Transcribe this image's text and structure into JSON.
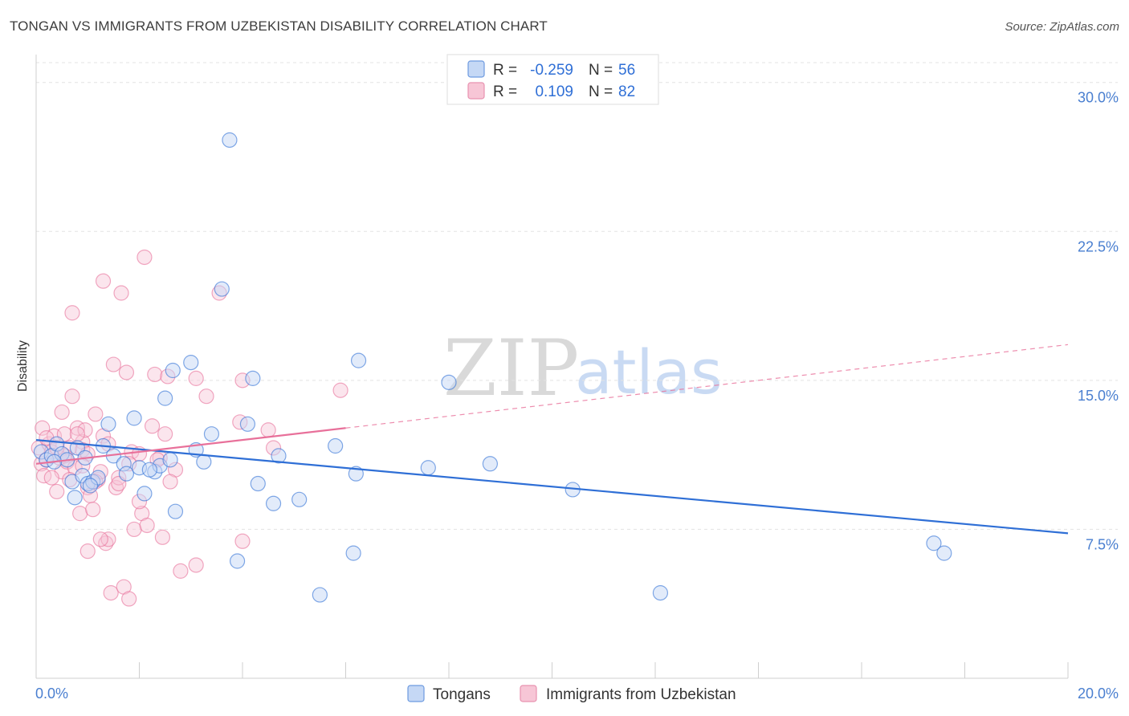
{
  "title": "TONGAN VS IMMIGRANTS FROM UZBEKISTAN DISABILITY CORRELATION CHART",
  "source": "Source: ZipAtlas.com",
  "watermark": {
    "zip": "ZIP",
    "atlas": "atlas"
  },
  "colors": {
    "tongans": "#2f6fd6",
    "tongans_fill": "#c5d8f5",
    "uzbek": "#e8709a",
    "uzbek_fill": "#f7c6d6",
    "grid": "#e3e3e3",
    "tick_label": "#4a7fd0"
  },
  "chart_data": {
    "type": "scatter",
    "title": "TONGAN VS IMMIGRANTS FROM UZBEKISTAN DISABILITY CORRELATION CHART",
    "xlabel": "",
    "ylabel": "Disability",
    "xlim": [
      0,
      20
    ],
    "ylim": [
      0,
      31
    ],
    "x_tick_labels": [
      "0.0%",
      "20.0%"
    ],
    "y_ticks": [
      7.5,
      15.0,
      22.5,
      30.0
    ],
    "y_tick_labels": [
      "7.5%",
      "15.0%",
      "22.5%",
      "30.0%"
    ],
    "grid": true,
    "legend": {
      "placement": "top-center",
      "entries": [
        {
          "series": "Tongans",
          "r_label": "R =",
          "r_value": "-0.259",
          "n_label": "N =",
          "n_value": "56"
        },
        {
          "series": "Immigrants from Uzbekistan",
          "r_label": "R =",
          "r_value": "0.109",
          "n_label": "N =",
          "n_value": "82"
        }
      ]
    },
    "series": [
      {
        "name": "Tongans",
        "trend": {
          "x": [
            0,
            20
          ],
          "y": [
            12.0,
            7.3
          ],
          "style": "solid"
        },
        "points": [
          [
            0.1,
            11.4
          ],
          [
            0.2,
            11.0
          ],
          [
            0.3,
            11.2
          ],
          [
            0.4,
            11.8
          ],
          [
            0.5,
            11.3
          ],
          [
            0.6,
            11.0
          ],
          [
            0.7,
            9.9
          ],
          [
            0.75,
            9.1
          ],
          [
            0.8,
            11.6
          ],
          [
            0.9,
            10.2
          ],
          [
            1.0,
            9.8
          ],
          [
            1.1,
            9.9
          ],
          [
            1.3,
            11.7
          ],
          [
            1.4,
            12.8
          ],
          [
            1.5,
            11.2
          ],
          [
            1.7,
            10.8
          ],
          [
            1.75,
            10.3
          ],
          [
            1.9,
            13.1
          ],
          [
            2.0,
            10.6
          ],
          [
            2.1,
            9.3
          ],
          [
            2.3,
            10.4
          ],
          [
            2.4,
            10.7
          ],
          [
            2.5,
            14.1
          ],
          [
            2.6,
            11.0
          ],
          [
            2.65,
            15.5
          ],
          [
            2.7,
            8.4
          ],
          [
            3.0,
            15.9
          ],
          [
            3.1,
            11.5
          ],
          [
            3.25,
            10.9
          ],
          [
            3.4,
            12.3
          ],
          [
            3.6,
            19.6
          ],
          [
            3.75,
            27.1
          ],
          [
            3.9,
            5.9
          ],
          [
            4.1,
            12.8
          ],
          [
            4.2,
            15.1
          ],
          [
            4.3,
            9.8
          ],
          [
            4.6,
            8.8
          ],
          [
            4.7,
            11.2
          ],
          [
            5.1,
            9.0
          ],
          [
            5.5,
            4.2
          ],
          [
            5.8,
            11.7
          ],
          [
            6.15,
            6.3
          ],
          [
            6.2,
            10.3
          ],
          [
            6.25,
            16.0
          ],
          [
            7.6,
            10.6
          ],
          [
            8.0,
            14.9
          ],
          [
            8.8,
            10.8
          ],
          [
            10.4,
            9.5
          ],
          [
            12.1,
            4.3
          ],
          [
            17.4,
            6.8
          ],
          [
            17.6,
            6.3
          ],
          [
            0.35,
            10.9
          ],
          [
            1.2,
            10.1
          ],
          [
            0.95,
            11.1
          ],
          [
            2.2,
            10.5
          ],
          [
            1.05,
            9.7
          ]
        ]
      },
      {
        "name": "Immigrants from Uzbekistan",
        "trend": {
          "x": [
            0,
            6.0
          ],
          "y": [
            10.8,
            12.6
          ],
          "style": "solid"
        },
        "trend_extension": {
          "x": [
            6.0,
            20
          ],
          "y": [
            12.6,
            16.8
          ],
          "style": "dashed"
        },
        "points": [
          [
            0.05,
            11.6
          ],
          [
            0.1,
            10.8
          ],
          [
            0.12,
            12.6
          ],
          [
            0.15,
            10.2
          ],
          [
            0.2,
            11.0
          ],
          [
            0.25,
            11.8
          ],
          [
            0.3,
            11.4
          ],
          [
            0.35,
            12.2
          ],
          [
            0.4,
            9.4
          ],
          [
            0.45,
            11.1
          ],
          [
            0.5,
            10.4
          ],
          [
            0.5,
            13.4
          ],
          [
            0.55,
            12.3
          ],
          [
            0.6,
            10.9
          ],
          [
            0.65,
            11.6
          ],
          [
            0.7,
            14.2
          ],
          [
            0.7,
            18.4
          ],
          [
            0.75,
            10.6
          ],
          [
            0.8,
            12.6
          ],
          [
            0.85,
            8.3
          ],
          [
            0.9,
            11.9
          ],
          [
            0.9,
            11.5
          ],
          [
            0.95,
            12.5
          ],
          [
            1.0,
            9.6
          ],
          [
            1.0,
            6.4
          ],
          [
            1.05,
            9.2
          ],
          [
            1.1,
            8.5
          ],
          [
            1.15,
            13.3
          ],
          [
            1.2,
            10.0
          ],
          [
            1.25,
            10.4
          ],
          [
            1.3,
            12.2
          ],
          [
            1.3,
            20.0
          ],
          [
            1.35,
            6.8
          ],
          [
            1.4,
            7.0
          ],
          [
            1.45,
            4.3
          ],
          [
            1.5,
            15.8
          ],
          [
            1.55,
            9.6
          ],
          [
            1.6,
            10.1
          ],
          [
            1.65,
            19.4
          ],
          [
            1.7,
            4.6
          ],
          [
            1.75,
            15.4
          ],
          [
            1.8,
            4.0
          ],
          [
            1.85,
            11.4
          ],
          [
            1.9,
            7.5
          ],
          [
            2.0,
            11.3
          ],
          [
            2.05,
            8.3
          ],
          [
            2.1,
            21.2
          ],
          [
            2.15,
            7.7
          ],
          [
            2.25,
            12.7
          ],
          [
            2.3,
            15.3
          ],
          [
            2.4,
            11.1
          ],
          [
            2.45,
            7.1
          ],
          [
            2.5,
            12.3
          ],
          [
            2.55,
            15.2
          ],
          [
            2.7,
            10.5
          ],
          [
            2.8,
            5.4
          ],
          [
            3.1,
            5.7
          ],
          [
            3.1,
            15.1
          ],
          [
            3.3,
            14.2
          ],
          [
            3.55,
            19.4
          ],
          [
            3.95,
            12.9
          ],
          [
            4.0,
            15.0
          ],
          [
            4.0,
            6.9
          ],
          [
            4.5,
            12.5
          ],
          [
            4.6,
            11.6
          ],
          [
            5.9,
            14.5
          ],
          [
            0.3,
            10.1
          ],
          [
            0.65,
            10.0
          ],
          [
            1.15,
            9.9
          ],
          [
            1.25,
            7.0
          ],
          [
            0.55,
            11.2
          ],
          [
            1.6,
            9.8
          ],
          [
            2.35,
            11.0
          ],
          [
            0.4,
            11.6
          ],
          [
            0.8,
            12.3
          ],
          [
            1.4,
            11.8
          ],
          [
            2.6,
            9.9
          ],
          [
            0.2,
            12.1
          ],
          [
            1.0,
            11.3
          ],
          [
            1.8,
            10.8
          ],
          [
            2.0,
            8.9
          ],
          [
            0.9,
            10.7
          ]
        ]
      }
    ]
  },
  "bottom_legend": [
    "Tongans",
    "Immigrants from Uzbekistan"
  ]
}
